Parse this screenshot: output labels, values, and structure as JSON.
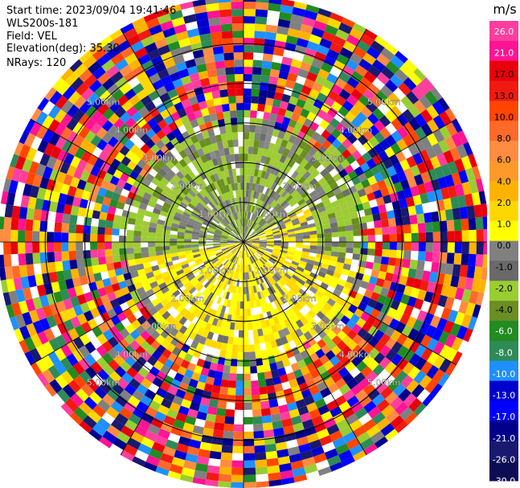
{
  "header": {
    "start_time": "Start time: 2023/09/04 19:41:46",
    "instrument": "WLS200s-181",
    "field": "Field: VEL",
    "elevation": "Elevation(deg): 35.30",
    "nrays": "NRays: 120"
  },
  "chart_data": {
    "type": "heatmap",
    "projection": "polar-ppi",
    "title": "",
    "field": "VEL",
    "units": "m/s",
    "n_rays": 120,
    "elevation_deg": 35.3,
    "range_rings_km": [
      1.0,
      2.0,
      3.0,
      4.0,
      5.0
    ],
    "range_ring_labels": [
      "1.00km",
      "2.00km",
      "3.00km",
      "4.00km",
      "5.00km"
    ],
    "max_range_km": 6.2,
    "colorbar": {
      "label": "m/s",
      "ticks": [
        "26.0",
        "21.0",
        "17.0",
        "13.0",
        "10.0",
        "8.0",
        "6.0",
        "4.0",
        "2.0",
        "1.0",
        "0.0",
        "-1.0",
        "-2.0",
        "-4.0",
        "-6.0",
        "-8.0",
        "-10.0",
        "-13.0",
        "-17.0",
        "-21.0",
        "-26.0",
        "-30.0"
      ],
      "colors": [
        "#ff3e9e",
        "#ff1493",
        "#e8000b",
        "#f01a10",
        "#ff4500",
        "#ff6a2a",
        "#ff8c40",
        "#ff9a2a",
        "#ffb300",
        "#ffd700",
        "#ffff00",
        "#808080",
        "#696969",
        "#9acd32",
        "#6b8e23",
        "#228b22",
        "#2e8b57",
        "#1e90ff",
        "#0000cd",
        "#0000ff",
        "#00008b",
        "#191970",
        "#0d0d55"
      ]
    }
  }
}
